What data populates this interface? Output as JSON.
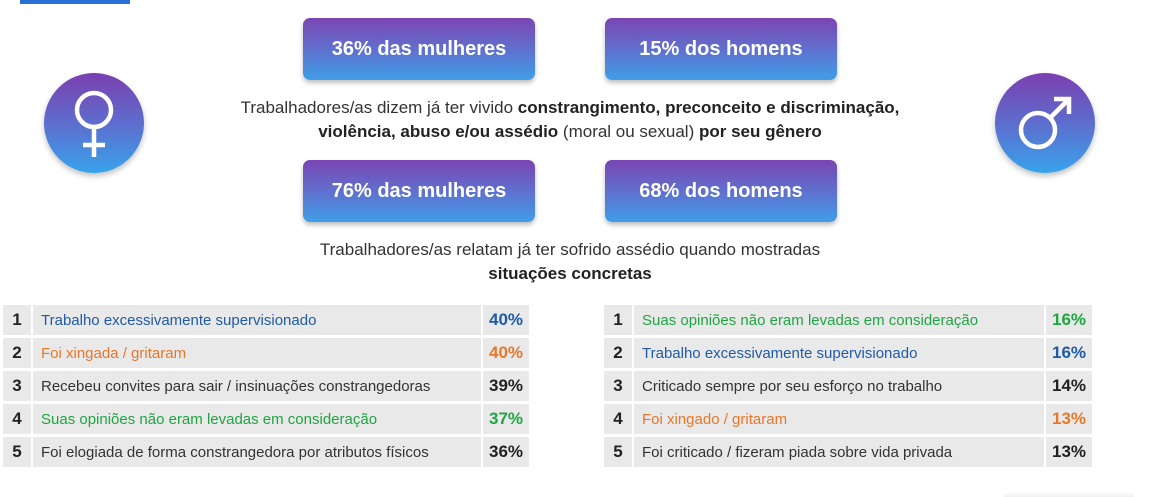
{
  "colors": {
    "blue": "#1f5ba8",
    "orange": "#e8772a",
    "green": "#1fa642",
    "dark": "#333333"
  },
  "stats_row1": {
    "women": "36% das mulheres",
    "men": "15% dos homens"
  },
  "statement1": {
    "t1": "Trabalhadores/as dizem já ter vivido ",
    "b1": "constrangimento, preconceito e discriminação, violência, abuso e/ou assédio",
    "t2": " (moral ou sexual) ",
    "b2": "por seu gênero"
  },
  "stats_row2": {
    "women": "76% das mulheres",
    "men": "68% dos homens"
  },
  "statement2": {
    "t1": "Trabalhadores/as relatam já ter sofrido assédio quando mostradas",
    "b1": "situações concretas"
  },
  "icons": {
    "left": "female-symbol-icon",
    "right": "male-symbol-icon"
  },
  "women_table": [
    {
      "rank": "1",
      "label": "Trabalho excessivamente supervisionado",
      "pct": "40%",
      "color": "blue"
    },
    {
      "rank": "2",
      "label": "Foi xingada / gritaram",
      "pct": "40%",
      "color": "orange"
    },
    {
      "rank": "3",
      "label": "Recebeu convites para sair / insinuações constrangedoras",
      "pct": "39%",
      "color": "dark"
    },
    {
      "rank": "4",
      "label": "Suas opiniões não eram levadas em consideração",
      "pct": "37%",
      "color": "green"
    },
    {
      "rank": "5",
      "label": "Foi elogiada de forma constrangedora por atributos físicos",
      "pct": "36%",
      "color": "dark"
    }
  ],
  "men_table": [
    {
      "rank": "1",
      "label": "Suas opiniões não eram levadas em consideração",
      "pct": "16%",
      "color": "green"
    },
    {
      "rank": "2",
      "label": "Trabalho excessivamente supervisionado",
      "pct": "16%",
      "color": "blue"
    },
    {
      "rank": "3",
      "label": "Criticado sempre por seu esforço no trabalho",
      "pct": "14%",
      "color": "dark"
    },
    {
      "rank": "4",
      "label": "Foi xingado / gritaram",
      "pct": "13%",
      "color": "orange"
    },
    {
      "rank": "5",
      "label": "Foi criticado / fizeram piada sobre vida privada",
      "pct": "13%",
      "color": "dark"
    }
  ]
}
